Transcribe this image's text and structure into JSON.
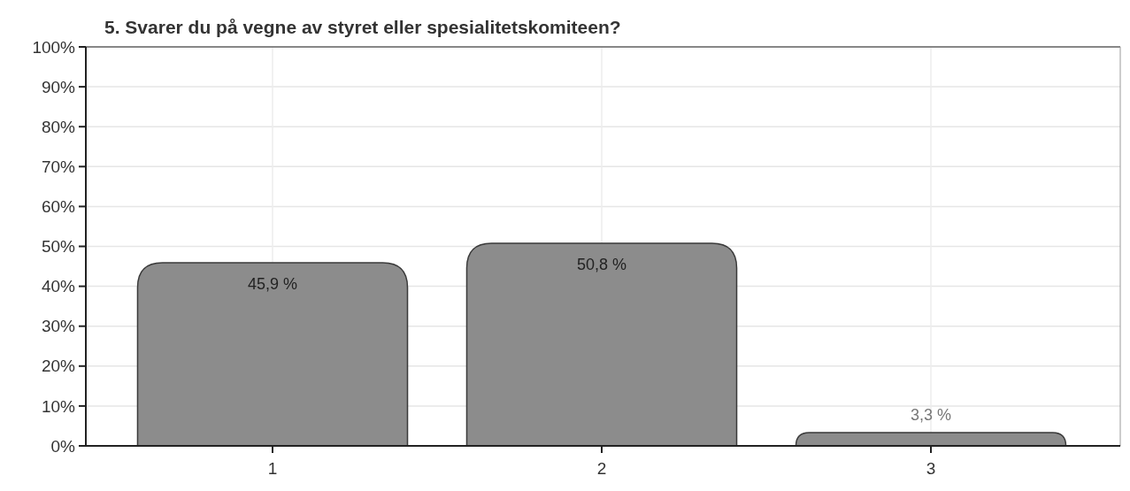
{
  "chart_data": {
    "type": "bar",
    "title": "5. Svarer du på vegne av styret eller spesialitetskomiteen?",
    "categories": [
      "1",
      "2",
      "3"
    ],
    "values": [
      45.9,
      50.8,
      3.3
    ],
    "color": "#8c8c8c",
    "value_labels": [
      "45,9 %",
      "50,8 %",
      "3,3 %"
    ],
    "ylim": [
      0,
      100
    ],
    "yticks": [
      {
        "value": 0,
        "label": "0%"
      },
      {
        "value": 10,
        "label": "10%"
      },
      {
        "value": 20,
        "label": "20%"
      },
      {
        "value": 30,
        "label": "30%"
      },
      {
        "value": 40,
        "label": "40%"
      },
      {
        "value": 50,
        "label": "50%"
      },
      {
        "value": 60,
        "label": "60%"
      },
      {
        "value": 70,
        "label": "70%"
      },
      {
        "value": 80,
        "label": "80%"
      },
      {
        "value": 90,
        "label": "90%"
      },
      {
        "value": 100,
        "label": "100%"
      }
    ],
    "grid": true
  }
}
